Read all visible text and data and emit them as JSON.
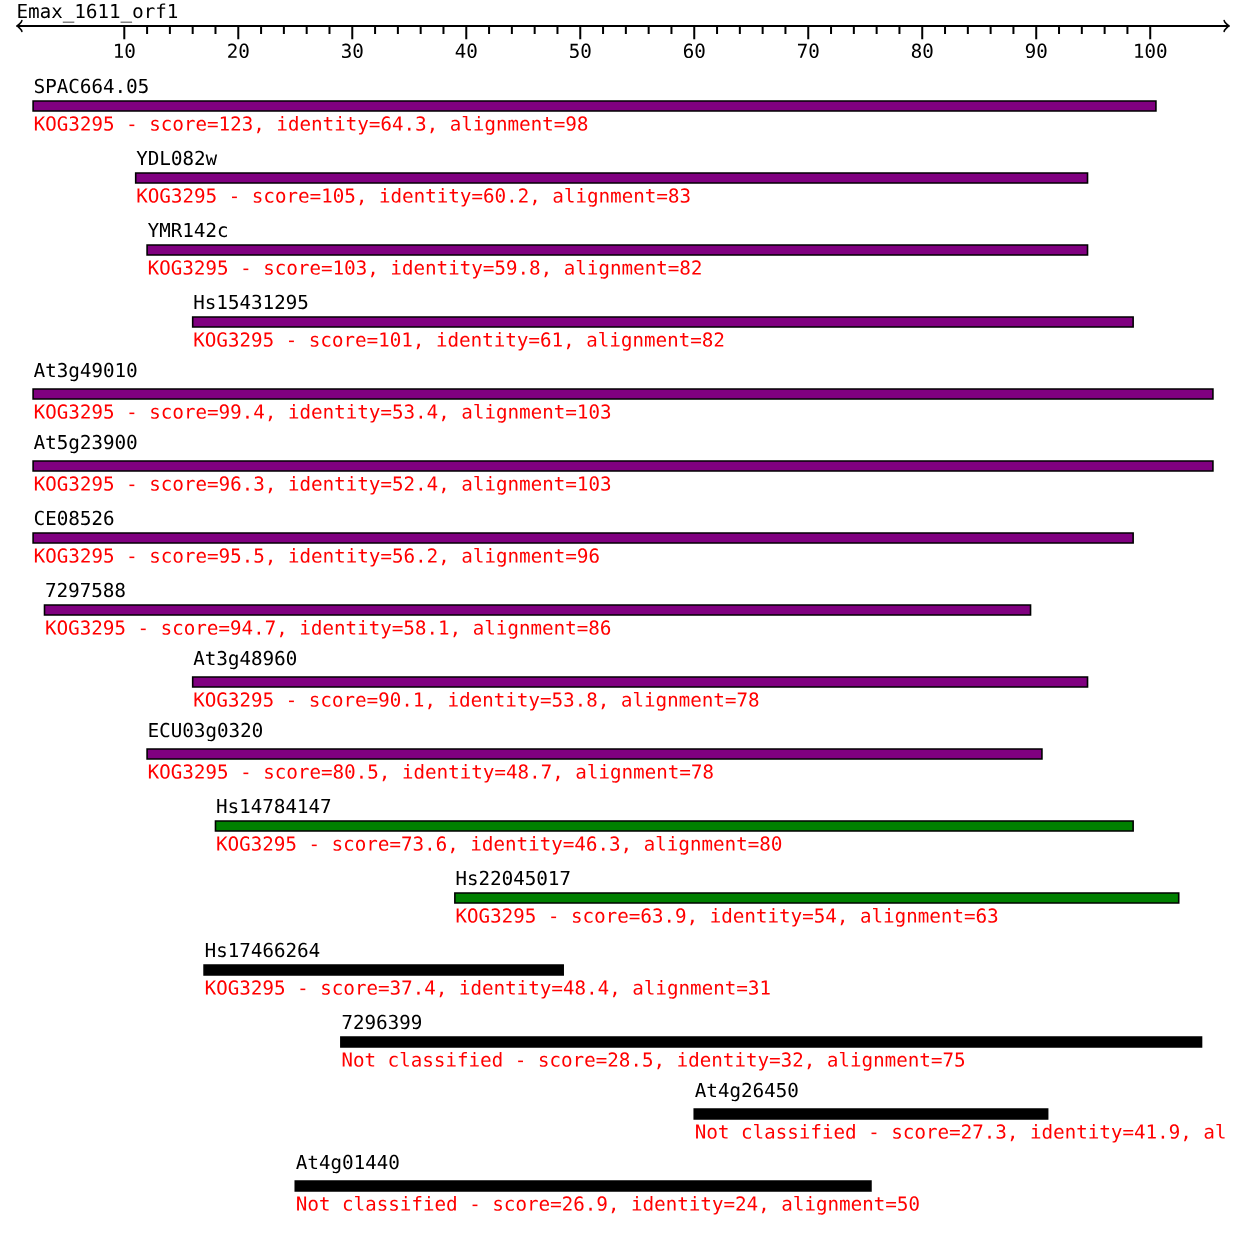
{
  "chart_data": {
    "type": "bar",
    "orientation": "horizontal",
    "title": "Emax_1611_orf1",
    "categories": [
      "SPAC664.05",
      "YDL082w",
      "YMR142c",
      "Hs15431295",
      "At3g49010",
      "At5g23900",
      "CE08526",
      "7297588",
      "At3g48960",
      "ECU03g0320",
      "Hs14784147",
      "Hs22045017",
      "Hs17466264",
      "7296399",
      "At4g26450",
      "At4g01440"
    ],
    "base": [
      2,
      11,
      12,
      16,
      2,
      2,
      2,
      3,
      16,
      12,
      18,
      39,
      17,
      29,
      60,
      25
    ],
    "values": [
      98.5,
      83.5,
      82.5,
      82.5,
      103.5,
      103.5,
      96.5,
      86.5,
      78.5,
      78.5,
      80.5,
      63.5,
      31.5,
      75.5,
      31,
      50.5
    ],
    "colors": [
      "#800080",
      "#800080",
      "#800080",
      "#800080",
      "#800080",
      "#800080",
      "#800080",
      "#800080",
      "#800080",
      "#800080",
      "#008000",
      "#008000",
      "#000000",
      "#000000",
      "#000000",
      "#000000"
    ],
    "value_labels": [
      "KOG3295 - score=123, identity=64.3, alignment=98",
      "KOG3295 - score=105, identity=60.2, alignment=83",
      "KOG3295 - score=103, identity=59.8, alignment=82",
      "KOG3295 - score=101, identity=61, alignment=82",
      "KOG3295 - score=99.4, identity=53.4, alignment=103",
      "KOG3295 - score=96.3, identity=52.4, alignment=103",
      "KOG3295 - score=95.5, identity=56.2, alignment=96",
      "KOG3295 - score=94.7, identity=58.1, alignment=86",
      "KOG3295 - score=90.1, identity=53.8, alignment=78",
      "KOG3295 - score=80.5, identity=48.7, alignment=78",
      "KOG3295 - score=73.6, identity=46.3, alignment=80",
      "KOG3295 - score=63.9, identity=54, alignment=63",
      "KOG3295 - score=37.4, identity=48.4, alignment=31",
      "Not classified - score=28.5, identity=32, alignment=75",
      "Not classified - score=27.3, identity=41.9, al",
      "Not classified - score=26.9, identity=24, alignment=50"
    ],
    "xlim": [
      0.5,
      107
    ],
    "xticks": [
      10,
      20,
      30,
      40,
      50,
      60,
      70,
      80,
      90,
      100
    ]
  }
}
